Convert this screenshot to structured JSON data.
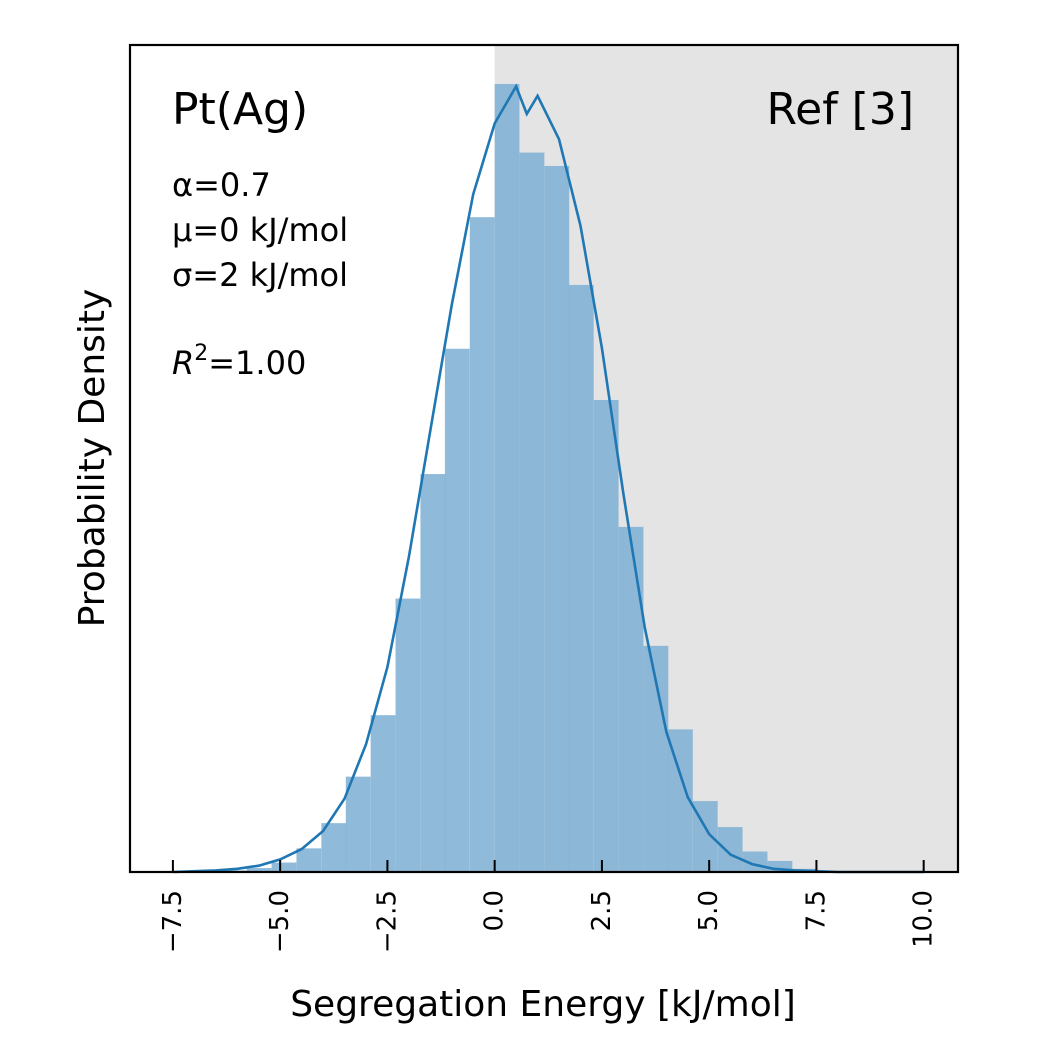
{
  "chart_data": {
    "type": "bar",
    "title": "",
    "xlabel": "Segregation Energy [kJ/mol]",
    "ylabel": "Probability Density",
    "xlim": [
      -8.5,
      10.8
    ],
    "ylim": [
      0,
      1.0
    ],
    "x_ticks": [
      "−7.5",
      "−5.0",
      "−2.5",
      "0.0",
      "2.5",
      "5.0",
      "7.5",
      "10.0"
    ],
    "x_tick_values": [
      -7.5,
      -5.0,
      -2.5,
      0.0,
      2.5,
      5.0,
      7.5,
      10.0
    ],
    "x_tick_rotation_deg": -90,
    "y_ticks_shown": false,
    "shaded_region": {
      "x_start": 0.0,
      "x_end": 10.8,
      "color": "#e4e4e4"
    },
    "histogram": {
      "color": "#7fb0d4",
      "bin_width": 0.578,
      "bins": [
        {
          "x0": -8.09,
          "density": 0.0
        },
        {
          "x0": -7.51,
          "density": 0.0
        },
        {
          "x0": -6.93,
          "density": 0.001
        },
        {
          "x0": -6.36,
          "density": 0.002
        },
        {
          "x0": -5.78,
          "density": 0.005
        },
        {
          "x0": -5.2,
          "density": 0.012
        },
        {
          "x0": -4.62,
          "density": 0.03
        },
        {
          "x0": -4.04,
          "density": 0.062
        },
        {
          "x0": -3.47,
          "density": 0.121
        },
        {
          "x0": -2.89,
          "density": 0.199
        },
        {
          "x0": -2.31,
          "density": 0.347
        },
        {
          "x0": -1.73,
          "density": 0.505
        },
        {
          "x0": -1.16,
          "density": 0.664
        },
        {
          "x0": -0.58,
          "density": 0.831
        },
        {
          "x0": 0.0,
          "density": 1.0
        },
        {
          "x0": 0.58,
          "density": 0.913
        },
        {
          "x0": 1.16,
          "density": 0.896
        },
        {
          "x0": 1.73,
          "density": 0.745
        },
        {
          "x0": 2.31,
          "density": 0.599
        },
        {
          "x0": 2.89,
          "density": 0.438
        },
        {
          "x0": 3.47,
          "density": 0.287
        },
        {
          "x0": 4.04,
          "density": 0.181
        },
        {
          "x0": 4.62,
          "density": 0.09
        },
        {
          "x0": 5.2,
          "density": 0.057
        },
        {
          "x0": 5.78,
          "density": 0.026
        },
        {
          "x0": 6.36,
          "density": 0.014
        },
        {
          "x0": 6.93,
          "density": 0.004
        },
        {
          "x0": 7.51,
          "density": 0.001
        },
        {
          "x0": 8.09,
          "density": 0.0
        }
      ]
    },
    "fit_curve": {
      "color": "#1f77b4",
      "x": [
        -7.5,
        -7.0,
        -6.5,
        -6.0,
        -5.5,
        -5.0,
        -4.5,
        -4.0,
        -3.5,
        -3.0,
        -2.5,
        -2.0,
        -1.5,
        -1.0,
        -0.5,
        0.0,
        0.5,
        0.75,
        1.0,
        1.5,
        2.0,
        2.5,
        3.0,
        3.5,
        4.0,
        4.5,
        5.0,
        5.5,
        6.0,
        6.5,
        7.0,
        7.5,
        8.0,
        8.5,
        9.0,
        9.5,
        10.0
      ],
      "y": [
        0.0,
        0.001,
        0.002,
        0.004,
        0.008,
        0.016,
        0.029,
        0.052,
        0.093,
        0.162,
        0.26,
        0.4,
        0.56,
        0.72,
        0.86,
        0.95,
        0.997,
        0.962,
        0.985,
        0.93,
        0.82,
        0.665,
        0.48,
        0.31,
        0.178,
        0.095,
        0.048,
        0.022,
        0.01,
        0.004,
        0.002,
        0.001,
        0.0,
        0.0,
        0.0,
        0.0,
        0.0
      ]
    },
    "annotations": {
      "material": "Pt(Ag)",
      "reference": "Ref [3]",
      "alpha": "α=0.7",
      "mu": "μ=0 kJ/mol",
      "sigma": "σ=2 kJ/mol",
      "r2_label": "R",
      "r2_exp": "2",
      "r2_value": "=1.00"
    }
  }
}
